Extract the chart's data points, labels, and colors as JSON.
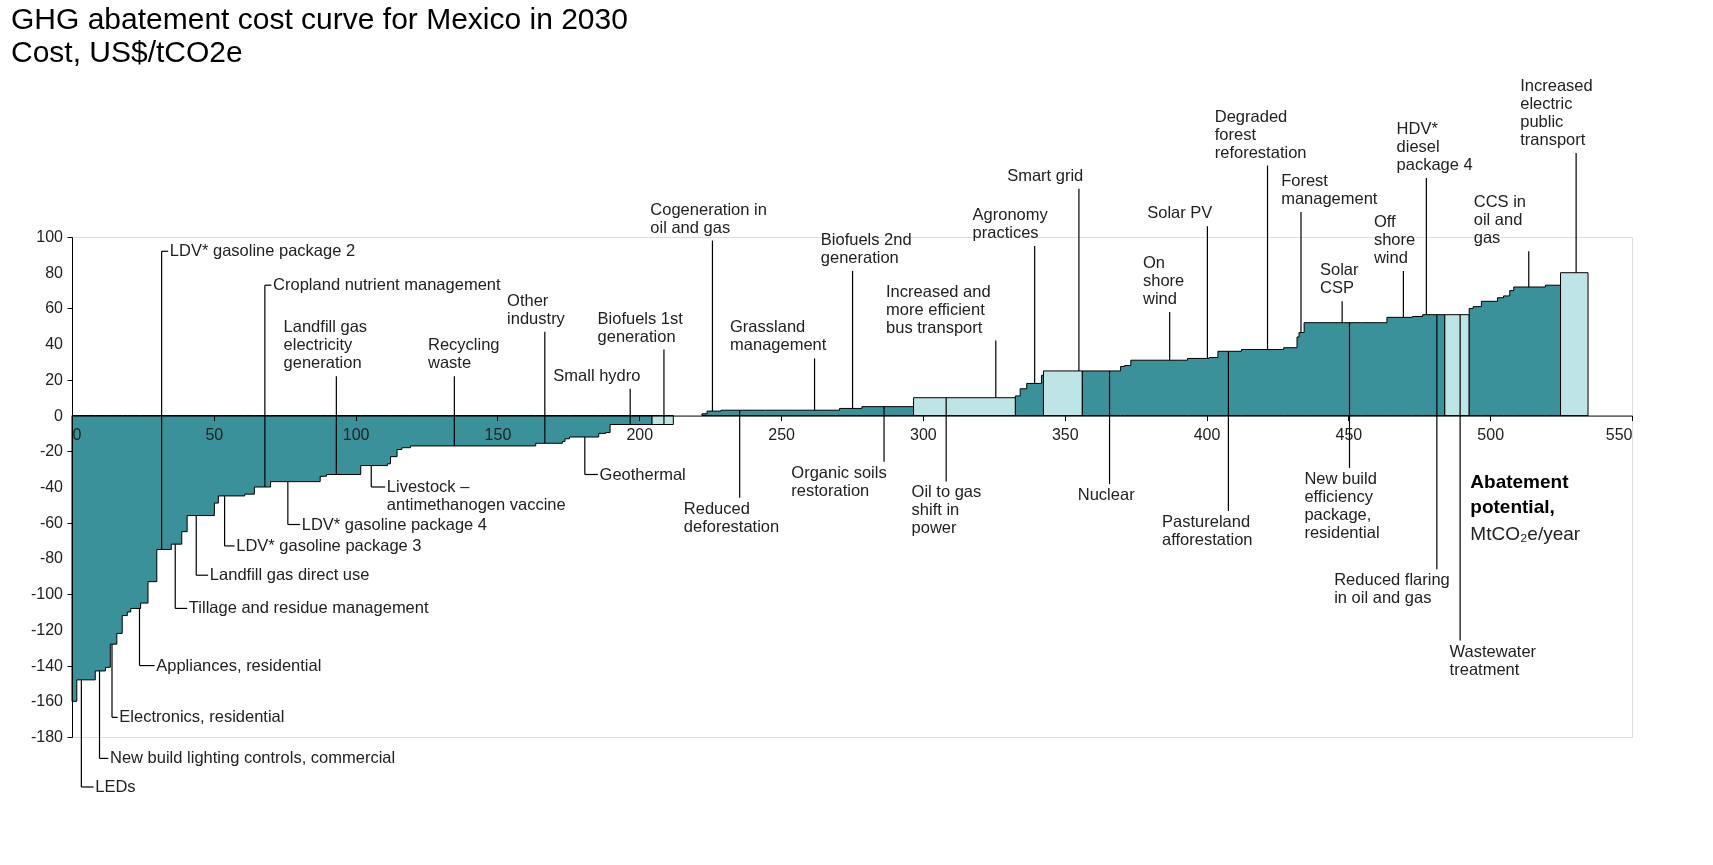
{
  "chart_data": {
    "type": "area",
    "title": "GHG abatement cost curve for Mexico in 2030",
    "subtitle": "Cost, US$/tCO2e",
    "xlabel": "Abatement potential, MtCO₂e/year",
    "series": [
      {
        "color": "#3a9199",
        "x": [
          0,
          1.7,
          8.2,
          11.8,
          13.5,
          15.8,
          17.7,
          19.5,
          20.7,
          24.2,
          26.8,
          29.9,
          35,
          38.7,
          40.6,
          50.2,
          51.6,
          60.9,
          64.3,
          70,
          87.5,
          89.7,
          101.8,
          111.2,
          112.3,
          114.6,
          116.3,
          119.3,
          163.5,
          172.9,
          173.8,
          175.4,
          185.7,
          188.1,
          189.7,
          204.5
        ],
        "values": [
          -160,
          -148,
          -143,
          -141,
          -128,
          -122,
          -112,
          -110,
          -108,
          -105,
          -93,
          -75,
          -72,
          -65,
          -56,
          -49,
          -45,
          -44,
          -40,
          -37,
          -34,
          -33,
          -28,
          -27,
          -23,
          -19,
          -18,
          -17,
          -15.5,
          -14.5,
          -13,
          -12,
          -10,
          -9.5,
          -5,
          -5
        ]
      },
      {
        "color": "#bfe4e6",
        "x": [
          204.5,
          212
        ],
        "values": [
          -5,
          -5
        ]
      },
      {
        "color": "#3a9199",
        "x": [
          222.1,
          223.9,
          228.8,
          244.5,
          250,
          256,
          270.6,
          278.5,
          296.7
        ],
        "values": [
          1,
          2.5,
          3,
          3,
          3,
          3,
          4,
          5,
          5
        ]
      },
      {
        "color": "#bfe4e6",
        "x": [
          296.7,
          318,
          332.6
        ],
        "values": [
          10,
          10,
          10
        ]
      },
      {
        "color": "#3a9199",
        "x": [
          332.6,
          334.3,
          336.6,
          341.8,
          342.5
        ],
        "values": [
          11,
          15,
          18,
          22.5,
          22.5
        ]
      },
      {
        "color": "#bfe4e6",
        "x": [
          342.5,
          356.2
        ],
        "values": [
          25,
          25
        ]
      },
      {
        "color": "#3a9199",
        "x": [
          356.2,
          369.7,
          371.1,
          373.3,
          393.3,
          400.9,
          404,
          412.3,
          427.2,
          431.9,
          432.6,
          434.4,
          454.7,
          463.6,
          472.6,
          476.2,
          484
        ],
        "values": [
          25,
          27.5,
          28,
          31,
          32,
          32.5,
          36,
          37,
          38,
          44,
          46.5,
          52,
          52,
          55,
          55.5,
          56.5,
          56.5
        ]
      },
      {
        "color": "#bfe4e6",
        "x": [
          484,
          492.6
        ],
        "values": [
          56.5,
          56.5
        ]
      },
      {
        "color": "#3a9199",
        "x": [
          492.6,
          494,
          496.9,
          502.6,
          504.7,
          506.9,
          508.3,
          519.5,
          524.8
        ],
        "values": [
          60,
          61,
          64,
          66,
          67,
          70,
          72,
          73,
          73
        ]
      },
      {
        "color": "#bfe4e6",
        "x": [
          524.8,
          534.5
        ],
        "values": [
          80,
          80
        ]
      }
    ],
    "xlim": [
      0,
      550
    ],
    "xticks": [
      0,
      50,
      100,
      150,
      200,
      250,
      300,
      350,
      400,
      450,
      500,
      550
    ],
    "ylim": [
      -180,
      100
    ],
    "yticks": [
      100,
      80,
      60,
      40,
      20,
      0,
      -20,
      -40,
      -60,
      -80,
      -100,
      -120,
      -140,
      -160,
      -180
    ],
    "annotations": [
      {
        "text": "LDV* gasoline package 2",
        "x": 31.6,
        "y": -75
      },
      {
        "text": "Cropland nutrient management",
        "x": 68,
        "y": -40
      },
      {
        "text": "Landfill gas electricity generation",
        "x": 93.2,
        "y": -33
      },
      {
        "text": "Recycling waste",
        "x": 134.8,
        "y": -17
      },
      {
        "text": "Other industry",
        "x": 166.7,
        "y": -15.5
      },
      {
        "text": "Biofuels 1st generation",
        "x": 208.7,
        "y": -5
      },
      {
        "text": "Small hydro",
        "x": 196.8,
        "y": -5
      },
      {
        "text": "Cogeneration in oil and gas",
        "x": 225.8,
        "y": 2.5
      },
      {
        "text": "Grassland management",
        "x": 261.8,
        "y": 3
      },
      {
        "text": "Biofuels 2nd generation",
        "x": 275.2,
        "y": 4
      },
      {
        "text": "Increased and more efficient bus transport",
        "x": 325.7,
        "y": 10
      },
      {
        "text": "Agronomy practices",
        "x": 339.4,
        "y": 18
      },
      {
        "text": "Smart grid",
        "x": 355,
        "y": 25
      },
      {
        "text": "Solar PV",
        "x": 400.3,
        "y": 32
      },
      {
        "text": "On shore wind",
        "x": 387,
        "y": 31
      },
      {
        "text": "Degraded forest reforestation",
        "x": 421.5,
        "y": 37
      },
      {
        "text": "Forest management",
        "x": 433.3,
        "y": 46.5
      },
      {
        "text": "Solar CSP",
        "x": 447.8,
        "y": 52
      },
      {
        "text": "Off shore wind",
        "x": 469.4,
        "y": 55
      },
      {
        "text": "HDV* diesel package 4",
        "x": 477.5,
        "y": 56.5
      },
      {
        "text": "CCS in oil and gas",
        "x": 513.6,
        "y": 72
      },
      {
        "text": "Increased electric public transport",
        "x": 530.3,
        "y": 80
      },
      {
        "text": "Livestock – antimethanogen vaccine",
        "x": 105.5,
        "y": -28
      },
      {
        "text": "LDV* gasoline package 4",
        "x": 76.1,
        "y": -37
      },
      {
        "text": "LDV* gasoline package 3",
        "x": 53.8,
        "y": -45
      },
      {
        "text": "Landfill gas direct use",
        "x": 43.8,
        "y": -56
      },
      {
        "text": "Tillage and residue management",
        "x": 36.4,
        "y": -72
      },
      {
        "text": "Appliances, residential",
        "x": 23.8,
        "y": -108
      },
      {
        "text": "Electronics, residential",
        "x": 14.1,
        "y": -128
      },
      {
        "text": "New build lighting controls, commercial",
        "x": 9.7,
        "y": -143
      },
      {
        "text": "LEDs",
        "x": 3.3,
        "y": -148
      },
      {
        "text": "Geothermal",
        "x": 180.8,
        "y": -12
      },
      {
        "text": "Reduced deforestation",
        "x": 235.4,
        "y": 3
      },
      {
        "text": "Organic soils restoration",
        "x": 286.3,
        "y": 5
      },
      {
        "text": "Oil to gas shift in power",
        "x": 308.2,
        "y": 10
      },
      {
        "text": "Nuclear",
        "x": 365.8,
        "y": 25
      },
      {
        "text": "Pastureland afforestation",
        "x": 407.7,
        "y": 36
      },
      {
        "text": "New build efficiency package, residential",
        "x": 450.4,
        "y": 52
      },
      {
        "text": "Reduced flaring in oil and gas",
        "x": 481.2,
        "y": 56.5
      },
      {
        "text": "Wastewater treatment",
        "x": 489.4,
        "y": 56.5
      }
    ]
  }
}
